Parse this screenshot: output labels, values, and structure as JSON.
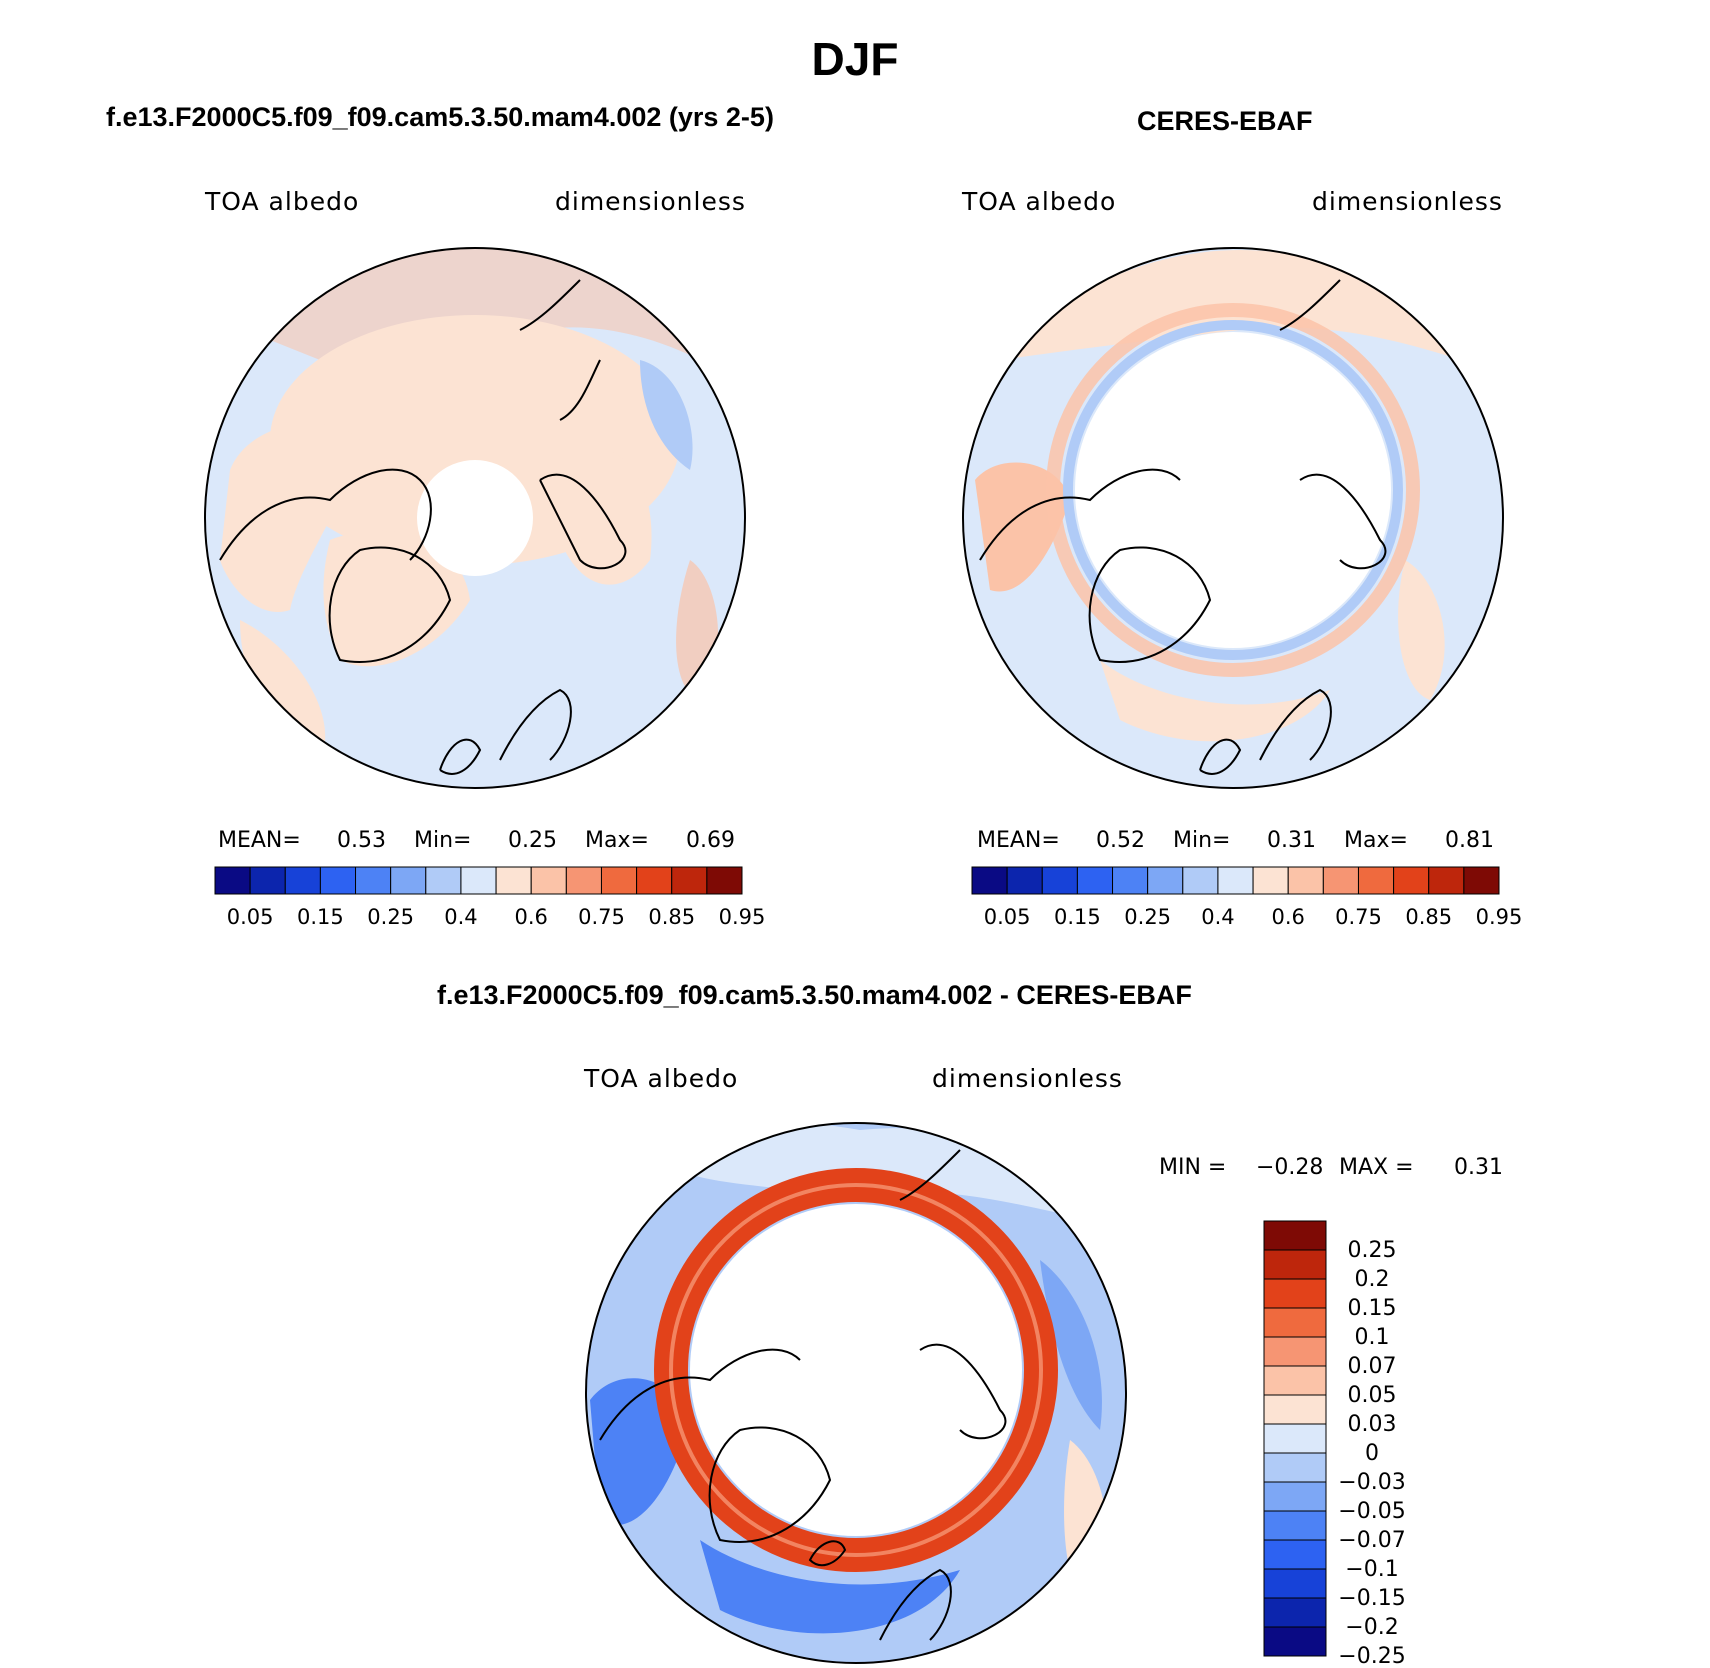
{
  "page_title": "DJF",
  "panels": [
    {
      "title": "f.e13.F2000C5.f09_f09.cam5.3.50.mam4.002 (yrs 2-5)",
      "variable": "TOA albedo",
      "units": "dimensionless",
      "stats": {
        "mean_label": "MEAN=",
        "mean": "0.53",
        "min_label": "Min=",
        "min": "0.25",
        "max_label": "Max=",
        "max": "0.69"
      }
    },
    {
      "title": "CERES-EBAF",
      "variable": "TOA albedo",
      "units": "dimensionless",
      "stats": {
        "mean_label": "MEAN=",
        "mean": "0.52",
        "min_label": "Min=",
        "min": "0.31",
        "max_label": "Max=",
        "max": "0.81"
      }
    },
    {
      "title": "f.e13.F2000C5.f09_f09.cam5.3.50.mam4.002 - CERES-EBAF",
      "variable": "TOA albedo",
      "units": "dimensionless",
      "stats": {
        "min_label": "MIN =",
        "min": "−0.28",
        "max_label": "MAX =",
        "max": "0.31"
      }
    }
  ],
  "chart_data": [
    {
      "type": "heatmap",
      "projection": "north-polar-stereographic",
      "title": "f.e13.F2000C5.f09_f09.cam5.3.50.mam4.002 (yrs 2-5)",
      "variable": "TOA albedo",
      "units": "dimensionless",
      "mean": 0.53,
      "min": 0.25,
      "max": 0.69,
      "missing_data_region": "north pole cap",
      "colorbar": {
        "orientation": "horizontal",
        "levels": [
          0.05,
          0.1,
          0.15,
          0.2,
          0.25,
          0.3,
          0.4,
          0.5,
          0.6,
          0.7,
          0.75,
          0.8,
          0.85,
          0.9,
          0.95
        ],
        "tick_labels": [
          "0.05",
          "0.15",
          "0.25",
          "0.4",
          "0.6",
          "0.75",
          "0.85",
          "0.95"
        ],
        "colors": [
          "#0a0a84",
          "#0c25ad",
          "#1742d8",
          "#2d62f2",
          "#4d82f5",
          "#7da7f5",
          "#b0cbf7",
          "#dbe8fa",
          "#fce3d3",
          "#fbc3a8",
          "#f69573",
          "#ef6a3e",
          "#e2421a",
          "#be260c",
          "#7e0a05"
        ]
      }
    },
    {
      "type": "heatmap",
      "projection": "north-polar-stereographic",
      "title": "CERES-EBAF",
      "variable": "TOA albedo",
      "units": "dimensionless",
      "mean": 0.52,
      "min": 0.31,
      "max": 0.81,
      "missing_data_region": "arctic interior (no polar-night retrievals)",
      "colorbar": {
        "orientation": "horizontal",
        "levels": [
          0.05,
          0.1,
          0.15,
          0.2,
          0.25,
          0.3,
          0.4,
          0.5,
          0.6,
          0.7,
          0.75,
          0.8,
          0.85,
          0.9,
          0.95
        ],
        "tick_labels": [
          "0.05",
          "0.15",
          "0.25",
          "0.4",
          "0.6",
          "0.75",
          "0.85",
          "0.95"
        ],
        "colors": [
          "#0a0a84",
          "#0c25ad",
          "#1742d8",
          "#2d62f2",
          "#4d82f5",
          "#7da7f5",
          "#b0cbf7",
          "#dbe8fa",
          "#fce3d3",
          "#fbc3a8",
          "#f69573",
          "#ef6a3e",
          "#e2421a",
          "#be260c",
          "#7e0a05"
        ]
      }
    },
    {
      "type": "heatmap",
      "projection": "north-polar-stereographic",
      "title": "f.e13.F2000C5.f09_f09.cam5.3.50.mam4.002 - CERES-EBAF",
      "variable": "TOA albedo",
      "units": "dimensionless",
      "min": -0.28,
      "max": 0.31,
      "colorbar": {
        "orientation": "vertical",
        "levels": [
          -0.25,
          -0.2,
          -0.15,
          -0.1,
          -0.07,
          -0.05,
          -0.03,
          0,
          0.03,
          0.05,
          0.07,
          0.1,
          0.15,
          0.2,
          0.25
        ],
        "tick_labels": [
          "−0.25",
          "−0.2",
          "−0.15",
          "−0.1",
          "−0.07",
          "−0.05",
          "−0.03",
          "0",
          "0.03",
          "0.05",
          "0.07",
          "0.1",
          "0.15",
          "0.2",
          "0.25"
        ],
        "colors": [
          "#0a0a84",
          "#0c25ad",
          "#1742d8",
          "#2d62f2",
          "#4d82f5",
          "#7da7f5",
          "#b0cbf7",
          "#dbe8fa",
          "#fce3d3",
          "#fbc3a8",
          "#f69573",
          "#ef6a3e",
          "#e2421a",
          "#be260c",
          "#7e0a05"
        ]
      }
    }
  ]
}
